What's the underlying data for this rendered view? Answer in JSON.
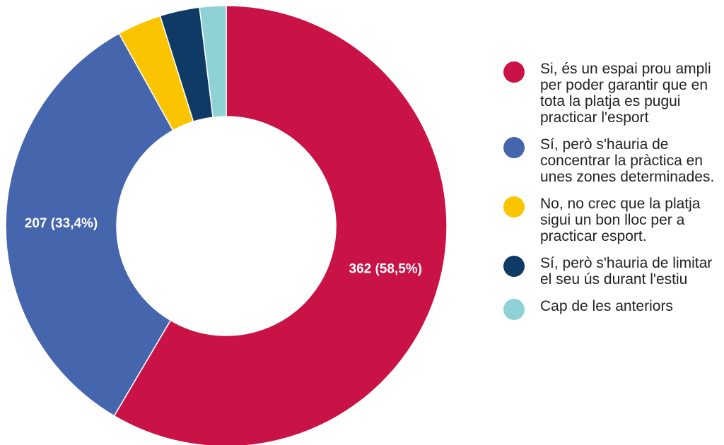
{
  "chart_data": {
    "type": "donut",
    "categories": [
      "Si, és un espai prou ampli per poder garantir que en tota la platja es pugui practicar l'esport",
      "Sí, però s'hauria de concentrar la pràctica en unes zones determinades.",
      "No, no crec que la platja sigui un bon lloc per a practicar esport.",
      "Sí, però s'hauria de limitar el seu ús durant l'estiu",
      "Cap de les anteriors"
    ],
    "values": [
      362,
      207,
      20,
      18,
      12
    ],
    "value_labels": [
      "362 (58,5%)",
      "207 (33,4%)",
      null,
      null,
      null
    ],
    "colors": [
      "#c91245",
      "#4565ad",
      "#fbc400",
      "#0f3a66",
      "#8ed2d5"
    ],
    "legend": "right"
  }
}
